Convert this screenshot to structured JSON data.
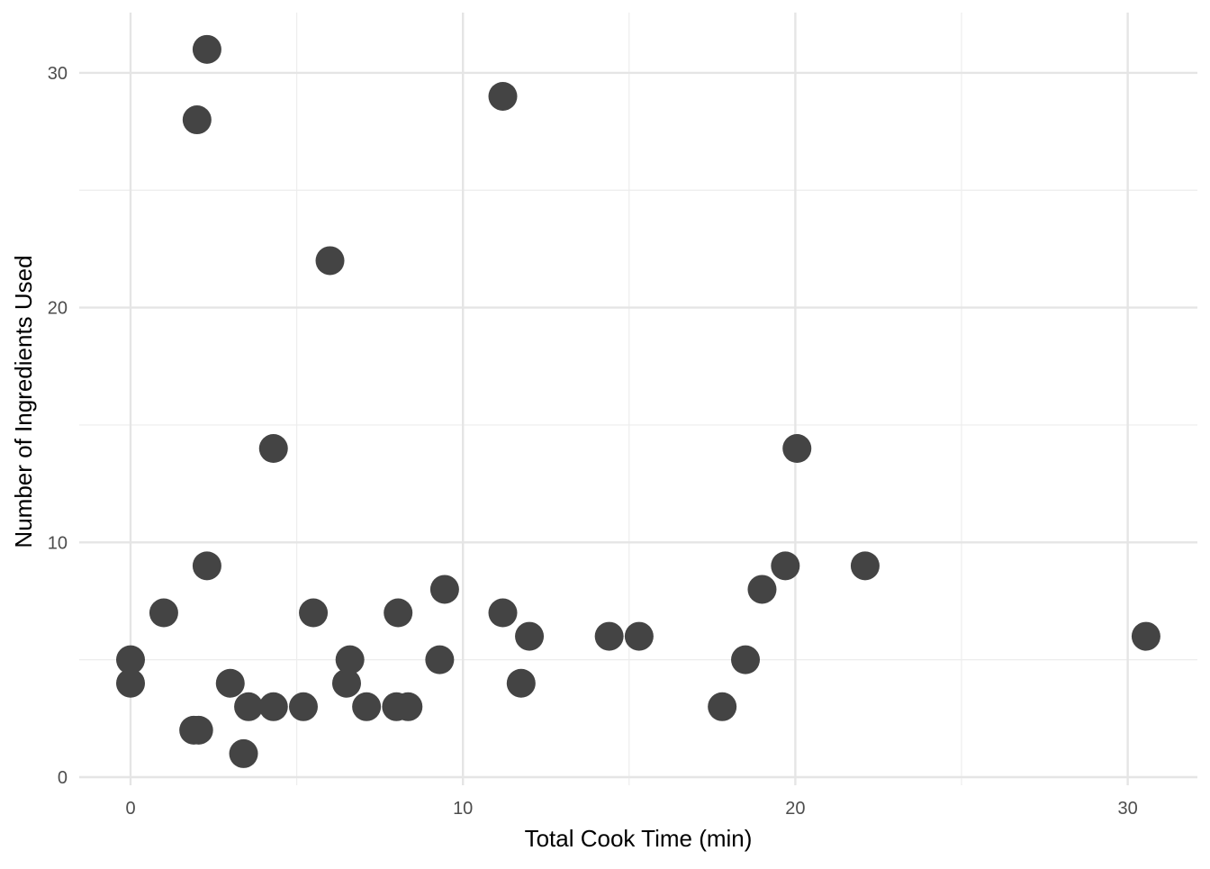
{
  "chart_data": {
    "type": "scatter",
    "title": "",
    "xlabel": "Total Cook Time (min)",
    "ylabel": "Number of Ingredients Used",
    "xlim": [
      -1.5,
      32
    ],
    "ylim": [
      -0.5,
      32.5
    ],
    "x_ticks": [
      0,
      10,
      20,
      30
    ],
    "x_tick_labels": [
      "0",
      "10",
      "20",
      "30"
    ],
    "x_minor_ticks": [
      5,
      15,
      25
    ],
    "y_ticks": [
      0,
      10,
      20,
      30
    ],
    "y_tick_labels": [
      "0",
      "10",
      "20",
      "30"
    ],
    "y_minor_ticks": [
      5,
      15,
      25
    ],
    "grid": true,
    "legend": "none",
    "point_color": "#444444",
    "grid_color": "#e5e5e5",
    "points": [
      {
        "x": 0,
        "y": 5
      },
      {
        "x": 0,
        "y": 4
      },
      {
        "x": 1,
        "y": 7
      },
      {
        "x": 1.9,
        "y": 2
      },
      {
        "x": 2.05,
        "y": 2
      },
      {
        "x": 2,
        "y": 28
      },
      {
        "x": 2.3,
        "y": 31
      },
      {
        "x": 2.3,
        "y": 9
      },
      {
        "x": 3,
        "y": 4
      },
      {
        "x": 3.4,
        "y": 1
      },
      {
        "x": 3.55,
        "y": 3
      },
      {
        "x": 4.3,
        "y": 3
      },
      {
        "x": 4.3,
        "y": 14
      },
      {
        "x": 5.2,
        "y": 3
      },
      {
        "x": 5.5,
        "y": 7
      },
      {
        "x": 6,
        "y": 22
      },
      {
        "x": 6.5,
        "y": 4
      },
      {
        "x": 6.6,
        "y": 5
      },
      {
        "x": 7.1,
        "y": 3
      },
      {
        "x": 8,
        "y": 3
      },
      {
        "x": 8.05,
        "y": 7
      },
      {
        "x": 8.35,
        "y": 3
      },
      {
        "x": 9.3,
        "y": 5
      },
      {
        "x": 9.45,
        "y": 8
      },
      {
        "x": 11.2,
        "y": 29
      },
      {
        "x": 11.2,
        "y": 7
      },
      {
        "x": 11.75,
        "y": 4
      },
      {
        "x": 12,
        "y": 6
      },
      {
        "x": 14.4,
        "y": 6
      },
      {
        "x": 15.3,
        "y": 6
      },
      {
        "x": 17.8,
        "y": 3
      },
      {
        "x": 18.5,
        "y": 5
      },
      {
        "x": 19,
        "y": 8
      },
      {
        "x": 19.7,
        "y": 9
      },
      {
        "x": 20.05,
        "y": 14
      },
      {
        "x": 22.1,
        "y": 9
      },
      {
        "x": 30.55,
        "y": 6
      }
    ]
  }
}
